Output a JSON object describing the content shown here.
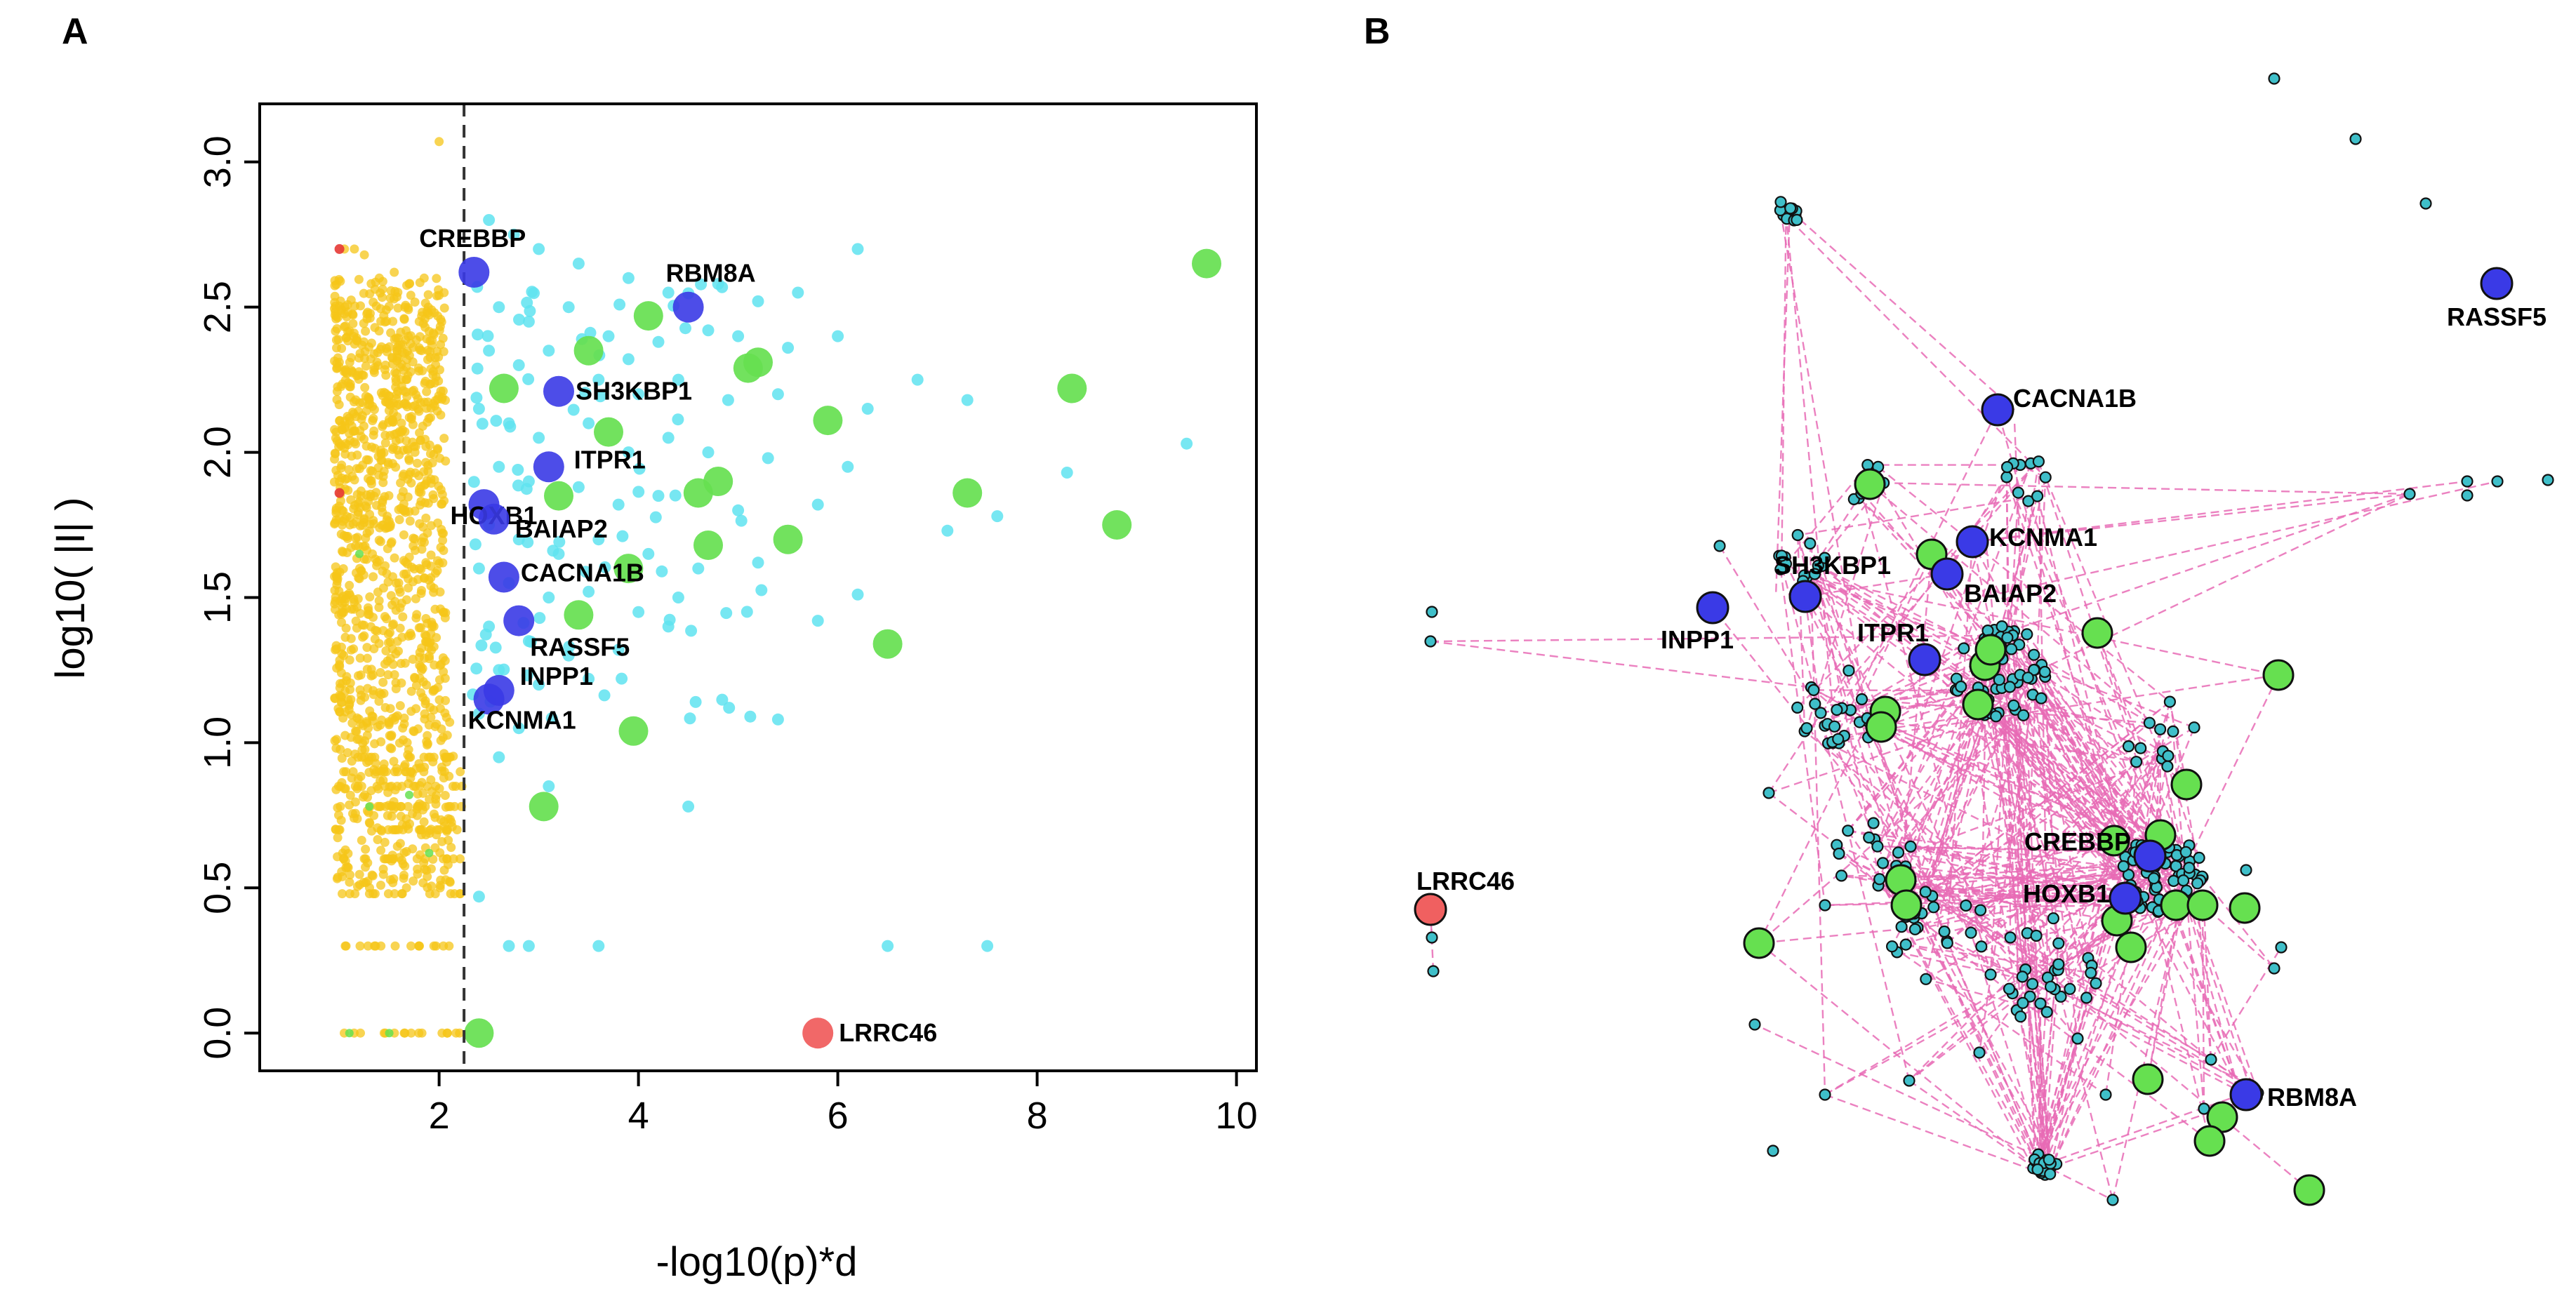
{
  "colors": {
    "nonsignificant": "#F5C518",
    "significant": "#5FE3F0",
    "green_gene": "#66E050",
    "blue_gene": "#3A3AE6",
    "red_gene": "#F06060",
    "edge": "#E86BB5",
    "network_node": "#3FBFC9"
  },
  "chart_data": [
    {
      "panel": "A",
      "type": "scatter",
      "title": "",
      "xlabel": "-log10(p)*d",
      "ylabel": "log10( |I| )",
      "xlim": [
        0.2,
        10.2
      ],
      "ylim": [
        -0.13,
        3.2
      ],
      "xticks": [
        2,
        4,
        6,
        8,
        10
      ],
      "yticks": [
        0.0,
        0.5,
        1.0,
        1.5,
        2.0,
        2.5,
        3.0
      ],
      "xtick_labels": [
        "2",
        "4",
        "6",
        "8",
        "10"
      ],
      "ytick_labels": [
        "0.0",
        "0.5",
        "1.0",
        "1.5",
        "2.0",
        "2.5",
        "3.0"
      ],
      "threshold_x": 2.25,
      "highlighted": [
        {
          "label": "CREBBP",
          "x": 2.35,
          "y": 2.62,
          "color": "blue"
        },
        {
          "label": "RBM8A",
          "x": 4.5,
          "y": 2.5,
          "color": "blue"
        },
        {
          "label": "SH3KBP1",
          "x": 3.2,
          "y": 2.21,
          "color": "blue"
        },
        {
          "label": "ITPR1",
          "x": 3.1,
          "y": 1.95,
          "color": "blue"
        },
        {
          "label": "HOXB1",
          "x": 2.45,
          "y": 1.82,
          "color": "blue"
        },
        {
          "label": "BAIAP2",
          "x": 2.55,
          "y": 1.77,
          "color": "blue"
        },
        {
          "label": "CACNA1B",
          "x": 2.65,
          "y": 1.57,
          "color": "blue"
        },
        {
          "label": "RASSF5",
          "x": 2.8,
          "y": 1.42,
          "color": "blue"
        },
        {
          "label": "INPP1",
          "x": 2.6,
          "y": 1.18,
          "color": "blue"
        },
        {
          "label": "KCNMA1",
          "x": 2.5,
          "y": 1.15,
          "color": "blue"
        },
        {
          "label": "LRRC46",
          "x": 5.8,
          "y": 0.0,
          "color": "red"
        }
      ],
      "green_points": [
        [
          9.7,
          2.65
        ],
        [
          8.35,
          2.22
        ],
        [
          8.8,
          1.75
        ],
        [
          7.3,
          1.86
        ],
        [
          5.9,
          2.11
        ],
        [
          5.2,
          2.31
        ],
        [
          5.1,
          2.29
        ],
        [
          4.1,
          2.47
        ],
        [
          3.5,
          2.35
        ],
        [
          3.7,
          2.07
        ],
        [
          4.6,
          1.86
        ],
        [
          4.8,
          1.9
        ],
        [
          4.7,
          1.68
        ],
        [
          5.5,
          1.7
        ],
        [
          3.2,
          1.85
        ],
        [
          3.9,
          1.6
        ],
        [
          3.4,
          1.44
        ],
        [
          6.5,
          1.34
        ],
        [
          3.95,
          1.04
        ],
        [
          3.05,
          0.78
        ],
        [
          2.4,
          0.0
        ],
        [
          2.65,
          2.22
        ]
      ],
      "cyan_points": [
        [
          2.5,
          2.8
        ],
        [
          2.75,
          2.75
        ],
        [
          3.0,
          2.7
        ],
        [
          3.4,
          2.65
        ],
        [
          3.9,
          2.6
        ],
        [
          4.3,
          2.55
        ],
        [
          4.8,
          2.58
        ],
        [
          5.2,
          2.52
        ],
        [
          5.6,
          2.55
        ],
        [
          6.2,
          2.7
        ],
        [
          2.6,
          2.5
        ],
        [
          2.9,
          2.45
        ],
        [
          3.3,
          2.5
        ],
        [
          3.7,
          2.4
        ],
        [
          4.2,
          2.38
        ],
        [
          4.7,
          2.42
        ],
        [
          5.0,
          2.4
        ],
        [
          5.5,
          2.36
        ],
        [
          6.0,
          2.4
        ],
        [
          6.8,
          2.25
        ],
        [
          2.5,
          2.35
        ],
        [
          2.8,
          2.3
        ],
        [
          3.1,
          2.35
        ],
        [
          3.6,
          2.25
        ],
        [
          4.0,
          2.2
        ],
        [
          4.4,
          2.25
        ],
        [
          4.9,
          2.18
        ],
        [
          5.4,
          2.2
        ],
        [
          6.3,
          2.15
        ],
        [
          7.3,
          2.18
        ],
        [
          2.4,
          2.15
        ],
        [
          2.7,
          2.1
        ],
        [
          3.0,
          2.05
        ],
        [
          3.5,
          2.1
        ],
        [
          3.9,
          2.0
        ],
        [
          4.3,
          2.05
        ],
        [
          4.7,
          2.0
        ],
        [
          5.3,
          1.98
        ],
        [
          6.1,
          1.95
        ],
        [
          2.6,
          1.95
        ],
        [
          2.9,
          1.9
        ],
        [
          3.4,
          1.88
        ],
        [
          3.8,
          1.82
        ],
        [
          4.2,
          1.85
        ],
        [
          5.0,
          1.8
        ],
        [
          5.8,
          1.82
        ],
        [
          7.6,
          1.78
        ],
        [
          8.3,
          1.93
        ],
        [
          9.5,
          2.03
        ],
        [
          2.5,
          1.75
        ],
        [
          2.8,
          1.7
        ],
        [
          3.2,
          1.65
        ],
        [
          3.6,
          1.7
        ],
        [
          4.1,
          1.65
        ],
        [
          4.6,
          1.6
        ],
        [
          5.2,
          1.62
        ],
        [
          7.1,
          1.73
        ],
        [
          2.4,
          1.6
        ],
        [
          2.7,
          1.55
        ],
        [
          3.1,
          1.5
        ],
        [
          3.5,
          1.52
        ],
        [
          4.0,
          1.45
        ],
        [
          4.4,
          1.5
        ],
        [
          6.2,
          1.51
        ],
        [
          2.5,
          1.4
        ],
        [
          2.9,
          1.35
        ],
        [
          3.3,
          1.3
        ],
        [
          3.8,
          1.32
        ],
        [
          4.3,
          1.4
        ],
        [
          5.8,
          1.42
        ],
        [
          2.6,
          1.25
        ],
        [
          3.0,
          1.2
        ],
        [
          3.5,
          1.22
        ],
        [
          2.4,
          1.1
        ],
        [
          2.8,
          1.05
        ],
        [
          2.6,
          0.95
        ],
        [
          3.1,
          0.85
        ],
        [
          4.5,
          0.78
        ],
        [
          5.4,
          1.08
        ],
        [
          2.4,
          0.47
        ],
        [
          2.7,
          0.3
        ],
        [
          2.9,
          0.3
        ],
        [
          3.6,
          0.3
        ],
        [
          6.5,
          0.3
        ],
        [
          7.5,
          0.3
        ]
      ],
      "yellow_points": [
        [
          2.0,
          3.07
        ],
        [
          1.05,
          2.7
        ],
        [
          1.15,
          2.7
        ],
        [
          1.25,
          2.68
        ],
        [
          1.4,
          2.6
        ],
        [
          1.55,
          2.62
        ],
        [
          1.7,
          2.58
        ],
        [
          1.85,
          2.6
        ],
        [
          2.05,
          2.55
        ]
      ],
      "red_small": [
        [
          1.0,
          2.7
        ],
        [
          1.0,
          1.86
        ]
      ]
    },
    {
      "panel": "B",
      "type": "network",
      "labeled_nodes": [
        {
          "label": "RASSF5",
          "color": "blue"
        },
        {
          "label": "CACNA1B",
          "color": "blue"
        },
        {
          "label": "KCNMA1",
          "color": "blue"
        },
        {
          "label": "SH3KBP1",
          "color": "blue"
        },
        {
          "label": "BAIAP2",
          "color": "blue"
        },
        {
          "label": "INPP1",
          "color": "blue"
        },
        {
          "label": "ITPR1",
          "color": "blue"
        },
        {
          "label": "CREBBP",
          "color": "blue"
        },
        {
          "label": "HOXB1",
          "color": "blue"
        },
        {
          "label": "RBM8A",
          "color": "blue"
        },
        {
          "label": "LRRC46",
          "color": "red"
        }
      ]
    }
  ],
  "panel_letters": {
    "a": "A",
    "b": "B"
  }
}
